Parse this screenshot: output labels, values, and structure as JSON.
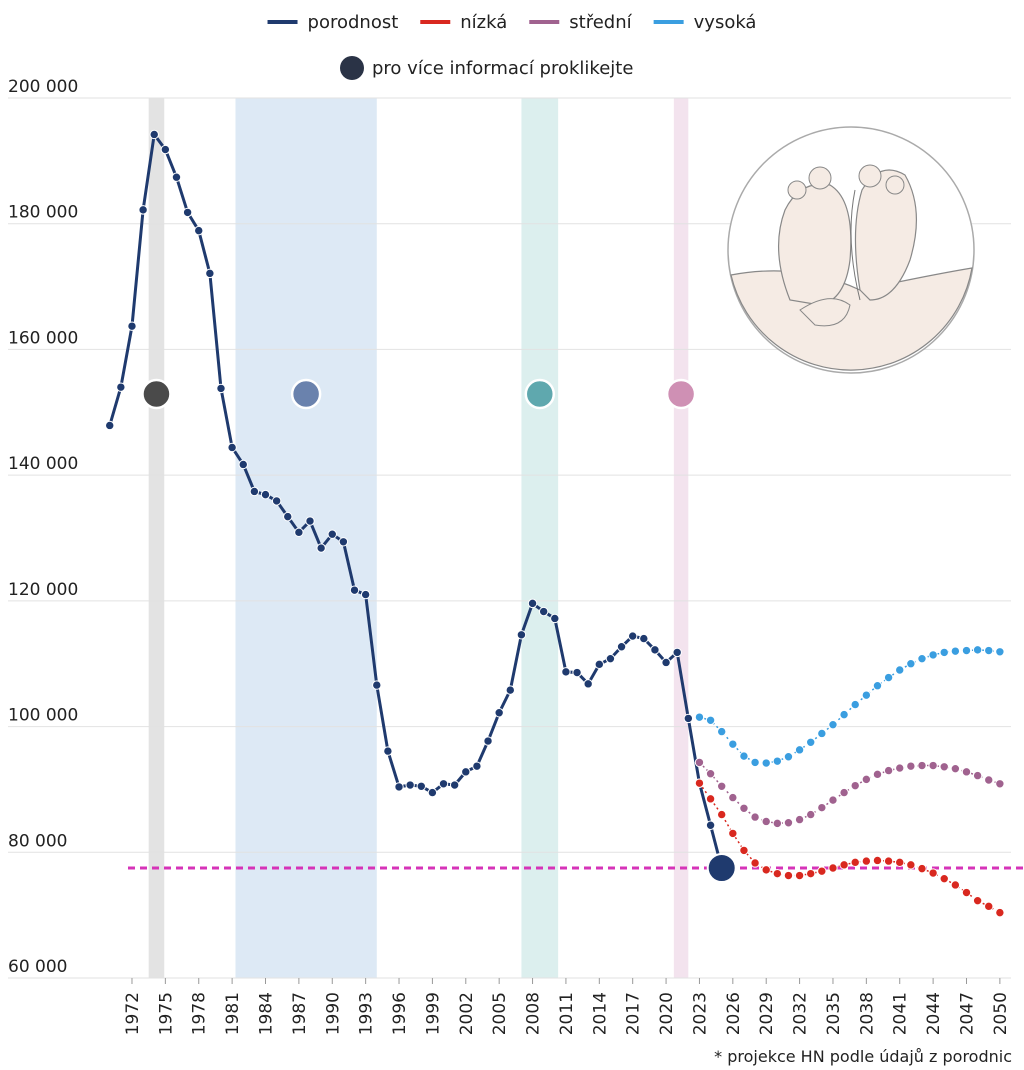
{
  "chart_data": {
    "type": "line",
    "legend_note": "pro více informací proklikejte",
    "footnote": "* projekce HN podle údajů z porodnic",
    "xlim": [
      1969,
      2051
    ],
    "xticks": [
      1972,
      1975,
      1978,
      1981,
      1984,
      1987,
      1990,
      1993,
      1996,
      1999,
      2002,
      2005,
      2008,
      2011,
      2014,
      2017,
      2020,
      2023,
      2026,
      2029,
      2032,
      2035,
      2038,
      2041,
      2044,
      2047,
      2050
    ],
    "ylim": [
      60000,
      200000
    ],
    "yticks": [
      {
        "value": 60000,
        "label": "60 000"
      },
      {
        "value": 80000,
        "label": "80 000"
      },
      {
        "value": 100000,
        "label": "100 000"
      },
      {
        "value": 120000,
        "label": "120 000"
      },
      {
        "value": 140000,
        "label": "140 000"
      },
      {
        "value": 160000,
        "label": "160 000"
      },
      {
        "value": 180000,
        "label": "180 000"
      },
      {
        "value": 200000,
        "label": "200 000"
      }
    ],
    "grid": true,
    "reference": {
      "value": 77500,
      "color": "#d633b8"
    },
    "highlights": [
      {
        "from": 1973.5,
        "to": 1974.9,
        "color": "#e3e3e3",
        "marker_color": "#4a4a4a"
      },
      {
        "from": 1981.3,
        "to": 1994.0,
        "color": "#dde9f5",
        "marker_color": "#6a82ad"
      },
      {
        "from": 2007.0,
        "to": 2010.3,
        "color": "#dcefee",
        "marker_color": "#5fa8ae"
      },
      {
        "from": 2020.7,
        "to": 2022.0,
        "color": "#f3e3ee",
        "marker_color": "#cf90b4"
      }
    ],
    "series": [
      {
        "name": "porodnost",
        "color": "#1f3a6e",
        "x": [
          1970,
          1971,
          1972,
          1973,
          1974,
          1975,
          1976,
          1977,
          1978,
          1979,
          1980,
          1981,
          1982,
          1983,
          1984,
          1985,
          1986,
          1987,
          1988,
          1989,
          1990,
          1991,
          1992,
          1993,
          1994,
          1995,
          1996,
          1997,
          1998,
          1999,
          2000,
          2001,
          2002,
          2003,
          2004,
          2005,
          2006,
          2007,
          2008,
          2009,
          2010,
          2011,
          2012,
          2013,
          2014,
          2015,
          2016,
          2017,
          2018,
          2019,
          2020,
          2021,
          2022,
          2023,
          2024,
          2025
        ],
        "values": [
          147900,
          154000,
          163700,
          182200,
          194200,
          191800,
          187400,
          181800,
          178900,
          172100,
          153800,
          144400,
          141700,
          137400,
          136900,
          135900,
          133400,
          130900,
          132700,
          128400,
          130600,
          129400,
          121700,
          121000,
          106600,
          96100,
          90400,
          90700,
          90500,
          89500,
          90900,
          90700,
          92800,
          93700,
          97700,
          102200,
          105800,
          114600,
          119600,
          118300,
          117200,
          108700,
          108600,
          106800,
          109900,
          110800,
          112700,
          114400,
          114000,
          112200,
          110200,
          111800,
          101300,
          91000,
          84300,
          77500
        ]
      },
      {
        "name": "nízká",
        "color": "#d9281f",
        "x": [
          2023,
          2024,
          2025,
          2026,
          2027,
          2028,
          2029,
          2030,
          2031,
          2032,
          2033,
          2034,
          2035,
          2036,
          2037,
          2038,
          2039,
          2040,
          2041,
          2042,
          2043,
          2044,
          2045,
          2046,
          2047,
          2048,
          2049,
          2050
        ],
        "values": [
          91000,
          88500,
          86000,
          83000,
          80300,
          78300,
          77200,
          76600,
          76300,
          76300,
          76600,
          77000,
          77500,
          78000,
          78400,
          78600,
          78700,
          78600,
          78400,
          78000,
          77400,
          76700,
          75800,
          74800,
          73600,
          72300,
          71400,
          70400
        ]
      },
      {
        "name": "střední",
        "color": "#a0628f",
        "x": [
          2023,
          2024,
          2025,
          2026,
          2027,
          2028,
          2029,
          2030,
          2031,
          2032,
          2033,
          2034,
          2035,
          2036,
          2037,
          2038,
          2039,
          2040,
          2041,
          2042,
          2043,
          2044,
          2045,
          2046,
          2047,
          2048,
          2049,
          2050
        ],
        "values": [
          94300,
          92500,
          90500,
          88700,
          87000,
          85600,
          84900,
          84600,
          84700,
          85200,
          86000,
          87100,
          88300,
          89500,
          90600,
          91600,
          92400,
          93000,
          93400,
          93700,
          93800,
          93800,
          93600,
          93300,
          92800,
          92200,
          91500,
          90900
        ]
      },
      {
        "name": "vysoká",
        "color": "#3a9ee0",
        "x": [
          2023,
          2024,
          2025,
          2026,
          2027,
          2028,
          2029,
          2030,
          2031,
          2032,
          2033,
          2034,
          2035,
          2036,
          2037,
          2038,
          2039,
          2040,
          2041,
          2042,
          2043,
          2044,
          2045,
          2046,
          2047,
          2048,
          2049,
          2050
        ],
        "values": [
          101500,
          101000,
          99200,
          97200,
          95300,
          94300,
          94200,
          94500,
          95200,
          96300,
          97500,
          98900,
          100300,
          101900,
          103500,
          105000,
          106500,
          107800,
          109000,
          110000,
          110800,
          111400,
          111800,
          112000,
          112100,
          112200,
          112100,
          111900
        ]
      }
    ]
  }
}
